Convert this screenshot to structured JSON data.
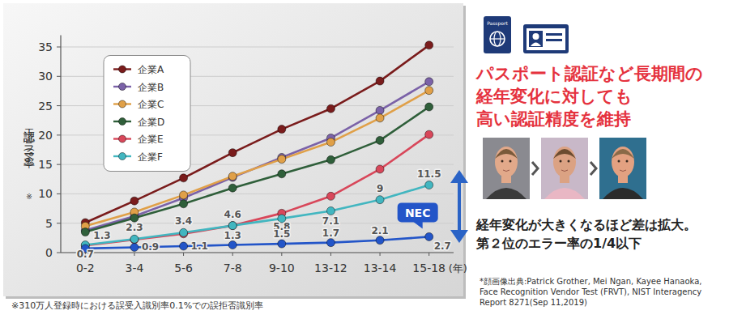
{
  "chart_data": {
    "type": "line",
    "ylabel": "認証エラー率(%)",
    "ylabel_note": "※",
    "xlabel": "(年)",
    "footnote": "※310万人登録時における誤受入識別率0.1%での誤拒否識別率",
    "categories": [
      "0-2",
      "3-4",
      "5-6",
      "7-8",
      "9-10",
      "13-12",
      "13-14",
      "15-18"
    ],
    "ylim": [
      0,
      37
    ],
    "yticks": [
      0,
      5,
      10,
      15,
      20,
      25,
      30,
      35
    ],
    "grid": true,
    "legend": "top-left",
    "marker": "circle",
    "line_style": "solid",
    "series": [
      {
        "name": "企業A",
        "color": "#7a1c1c",
        "values": [
          5.1,
          8.8,
          12.7,
          17.0,
          21.0,
          24.5,
          29.2,
          35.3
        ]
      },
      {
        "name": "企業B",
        "color": "#7b62a8",
        "values": [
          3.8,
          6.2,
          9.3,
          12.8,
          16.2,
          19.5,
          24.2,
          29.1
        ]
      },
      {
        "name": "企業C",
        "color": "#e0a048",
        "values": [
          4.5,
          6.9,
          9.8,
          13.0,
          15.9,
          18.8,
          22.9,
          27.6
        ]
      },
      {
        "name": "企業D",
        "color": "#2f5f3a",
        "values": [
          3.5,
          5.9,
          8.3,
          11.0,
          13.4,
          15.8,
          19.1,
          24.8
        ]
      },
      {
        "name": "企業E",
        "color": "#d8475a",
        "values": [
          1.2,
          2.2,
          3.2,
          4.6,
          6.7,
          9.6,
          14.2,
          20.1
        ]
      },
      {
        "name": "企業F",
        "color": "#42b6c0",
        "values": [
          1.3,
          2.3,
          3.4,
          4.6,
          5.8,
          7.1,
          9.0,
          11.5
        ],
        "data_labels": true
      },
      {
        "name": "NEC",
        "color": "#2355c8",
        "values": [
          0.7,
          0.9,
          1.1,
          1.3,
          1.5,
          1.7,
          2.1,
          2.7
        ],
        "data_labels": true,
        "legend": false
      }
    ]
  },
  "page": {
    "icon_label": "Passport",
    "headline": [
      "パスポート認証など長期間の",
      "経年変化に対しても",
      "高い認証精度を維持"
    ],
    "conclusion": [
      "経年変化が大きくなるほど差は拡大。",
      "第２位のエラー率の1/4以下"
    ],
    "image_credit": [
      "*顔画像出典:Patrick Grother, Mei Ngan, Kayee Hanaoka,",
      "Face Recognition Vendor Test (FRVT), NIST Interagency",
      "Report 8271(Sep 11,2019)"
    ]
  }
}
